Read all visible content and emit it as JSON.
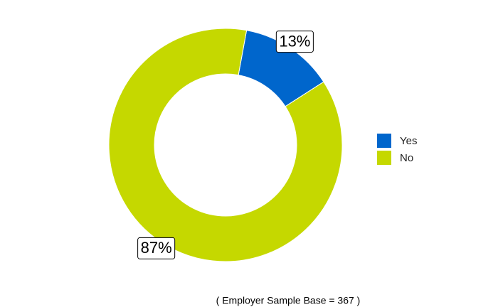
{
  "chart_data": {
    "type": "donut",
    "categories": [
      "Yes",
      "No"
    ],
    "values": [
      13,
      87
    ],
    "value_labels": [
      "13%",
      "87%"
    ],
    "colors": [
      "#0066cc",
      "#c5d800"
    ],
    "caption": "( Employer Sample Base =  367 )",
    "legend": "right"
  }
}
